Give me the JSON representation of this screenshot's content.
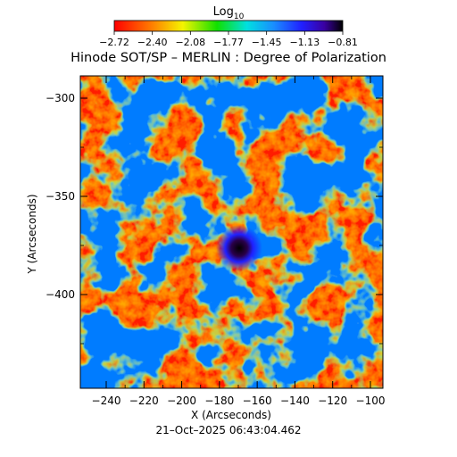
{
  "colorbar": {
    "label_base": "Log",
    "label_sub": "10",
    "ticks": [
      "−2.72",
      "−2.40",
      "−2.08",
      "−1.77",
      "−1.45",
      "−1.13",
      "−0.81"
    ],
    "colors": [
      "#ff0000",
      "#ff7a00",
      "#f4f400",
      "#10e000",
      "#00e0e0",
      "#1a8cff",
      "#2020ff",
      "#3a00a0",
      "#000000"
    ]
  },
  "title": "Hinode SOT/SP – MERLIN : Degree of Polarization",
  "x_axis": {
    "label": "X (Arcseconds)",
    "ticks": [
      "−240",
      "−220",
      "−200",
      "−180",
      "−160",
      "−140",
      "−120",
      "−100"
    ]
  },
  "y_axis": {
    "label": "Y (Arcseconds)",
    "ticks": [
      "−300",
      "−350",
      "−400"
    ]
  },
  "timestamp": "21–Oct–2025 06:43:04.462"
}
